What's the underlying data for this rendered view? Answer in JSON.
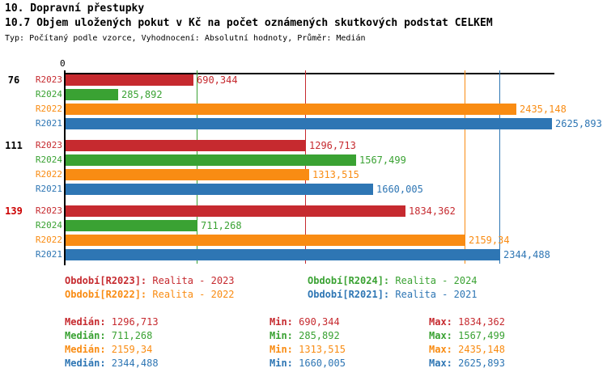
{
  "header": {
    "title1": "10. Dopravní přestupky",
    "title2": "10.7 Objem uložených pokut v Kč na počet oznámených skutkových podstat CELKEM",
    "subtitle": "Typ: Počítaný podle vzorce, Vyhodnocení: Absolutní hodnoty, Průměr: Medián"
  },
  "colors": {
    "red": "#C62A2F",
    "green": "#3AA233",
    "orange": "#F98C13",
    "blue": "#2E76B4",
    "black": "#000000",
    "alert_red": "#CC0000"
  },
  "chart_data": {
    "type": "bar",
    "orientation": "horizontal",
    "axis": {
      "zero_label": "0",
      "max": 2625.893
    },
    "series_colors": {
      "R2023": "red",
      "R2024": "green",
      "R2022": "orange",
      "R2021": "blue"
    },
    "groups": [
      {
        "label": "76",
        "label_color": "black",
        "bars": [
          {
            "series": "R2023",
            "value": 690.344,
            "display": "690,344"
          },
          {
            "series": "R2024",
            "value": 285.892,
            "display": "285,892"
          },
          {
            "series": "R2022",
            "value": 2435.148,
            "display": "2435,148"
          },
          {
            "series": "R2021",
            "value": 2625.893,
            "display": "2625,893"
          }
        ]
      },
      {
        "label": "111",
        "label_color": "black",
        "bars": [
          {
            "series": "R2023",
            "value": 1296.713,
            "display": "1296,713"
          },
          {
            "series": "R2024",
            "value": 1567.499,
            "display": "1567,499"
          },
          {
            "series": "R2022",
            "value": 1313.515,
            "display": "1313,515"
          },
          {
            "series": "R2021",
            "value": 1660.005,
            "display": "1660,005"
          }
        ]
      },
      {
        "label": "139",
        "label_color": "alert_red",
        "bars": [
          {
            "series": "R2023",
            "value": 1834.362,
            "display": "1834,362"
          },
          {
            "series": "R2024",
            "value": 711.268,
            "display": "711,268"
          },
          {
            "series": "R2022",
            "value": 2159.34,
            "display": "2159,34"
          },
          {
            "series": "R2021",
            "value": 2344.488,
            "display": "2344,488"
          }
        ]
      }
    ],
    "median_lines": [
      {
        "series": "R2024",
        "value": 711.268
      },
      {
        "series": "R2023",
        "value": 1296.713
      },
      {
        "series": "R2022",
        "value": 2159.34
      },
      {
        "series": "R2021",
        "value": 2344.488
      }
    ]
  },
  "legend": [
    {
      "series": "R2023",
      "prefix": "Období[R2023]:",
      "text": " Realita - 2023",
      "color": "red"
    },
    {
      "series": "R2024",
      "prefix": "Období[R2024]:",
      "text": " Realita - 2024",
      "color": "green"
    },
    {
      "series": "R2022",
      "prefix": "Období[R2022]:",
      "text": " Realita - 2022",
      "color": "orange"
    },
    {
      "series": "R2021",
      "prefix": "Období[R2021]:",
      "text": " Realita - 2021",
      "color": "blue"
    }
  ],
  "stats": {
    "median_label": "Medián: ",
    "min_label": "Min: ",
    "max_label": "Max: ",
    "rows": [
      {
        "color": "red",
        "median": "1296,713",
        "min": "690,344",
        "max": "1834,362"
      },
      {
        "color": "green",
        "median": "711,268",
        "min": "285,892",
        "max": "1567,499"
      },
      {
        "color": "orange",
        "median": "2159,34",
        "min": "1313,515",
        "max": "2435,148"
      },
      {
        "color": "blue",
        "median": "2344,488",
        "min": "1660,005",
        "max": "2625,893"
      }
    ]
  }
}
